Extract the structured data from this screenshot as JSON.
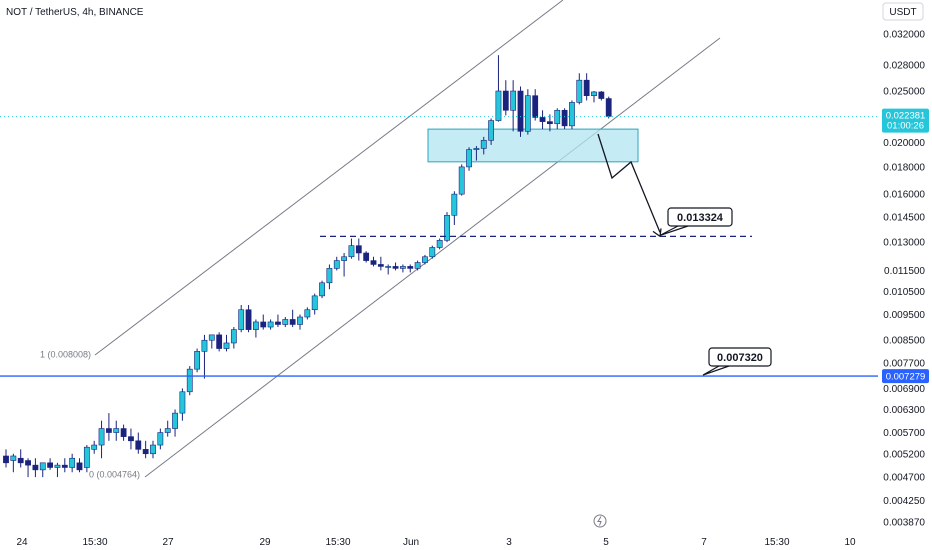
{
  "chart_data": {
    "type": "candlestick",
    "title": "NOT / TetherUS, 4h, BINANCE",
    "currency": "USDT",
    "y_scale": "log",
    "ylim": [
      0.0037,
      0.0335
    ],
    "y_ticks": [
      "0.032000",
      "0.028000",
      "0.025000",
      "0.020000",
      "0.018000",
      "0.016000",
      "0.014500",
      "0.013000",
      "0.011500",
      "0.010500",
      "0.009500",
      "0.008500",
      "0.007700",
      "0.006900",
      "0.006300",
      "0.005700",
      "0.005200",
      "0.004700",
      "0.004250",
      "0.003870"
    ],
    "x_labels": [
      "24",
      "15:30",
      "27",
      "29",
      "15:30",
      "Jun",
      "3",
      "5",
      "7",
      "15:30",
      "10"
    ],
    "last_price": {
      "value": "0.022381",
      "countdown": "01:00:26"
    },
    "support_line": {
      "value": "0.007279"
    },
    "callouts": [
      {
        "text": "0.013324",
        "value": 0.013324
      },
      {
        "text": "0.007320",
        "value": 0.00732
      }
    ],
    "fib_labels": [
      {
        "text": "1 (0.008008)",
        "value": 0.008008
      },
      {
        "text": "0 (0.004764)",
        "value": 0.004764
      }
    ],
    "colors": {
      "up": "#26c6da",
      "down": "#1a237e",
      "wick": "#1a237e",
      "support": "#2962ff",
      "zone": "#b2e6f0"
    },
    "candles": [
      [
        0.00515,
        0.0053,
        0.0049,
        0.005
      ],
      [
        0.00505,
        0.0052,
        0.0048,
        0.00515
      ],
      [
        0.0051,
        0.0053,
        0.0049,
        0.005
      ],
      [
        0.00505,
        0.0051,
        0.0047,
        0.00495
      ],
      [
        0.00495,
        0.0051,
        0.0047,
        0.00485
      ],
      [
        0.00485,
        0.005,
        0.0047,
        0.005
      ],
      [
        0.005,
        0.0051,
        0.00485,
        0.0049
      ],
      [
        0.0049,
        0.005,
        0.0047,
        0.00495
      ],
      [
        0.00495,
        0.0051,
        0.0048,
        0.0049
      ],
      [
        0.0049,
        0.0052,
        0.0048,
        0.0051
      ],
      [
        0.005,
        0.0051,
        0.0048,
        0.00485
      ],
      [
        0.0049,
        0.0054,
        0.0048,
        0.00535
      ],
      [
        0.0053,
        0.0055,
        0.0052,
        0.0054
      ],
      [
        0.0054,
        0.006,
        0.0051,
        0.0058
      ],
      [
        0.0058,
        0.0062,
        0.0055,
        0.0057
      ],
      [
        0.0057,
        0.006,
        0.0055,
        0.0058
      ],
      [
        0.0058,
        0.0059,
        0.0055,
        0.0056
      ],
      [
        0.0056,
        0.0058,
        0.0053,
        0.0055
      ],
      [
        0.0055,
        0.0057,
        0.0052,
        0.0053
      ],
      [
        0.0053,
        0.0055,
        0.0051,
        0.0052
      ],
      [
        0.0052,
        0.0055,
        0.0051,
        0.0054
      ],
      [
        0.0054,
        0.0058,
        0.0053,
        0.0057
      ],
      [
        0.0057,
        0.006,
        0.0056,
        0.0058
      ],
      [
        0.0058,
        0.0063,
        0.0056,
        0.0062
      ],
      [
        0.0062,
        0.0069,
        0.006,
        0.0068
      ],
      [
        0.0068,
        0.0076,
        0.0067,
        0.0075
      ],
      [
        0.0075,
        0.0082,
        0.0074,
        0.0081
      ],
      [
        0.0081,
        0.0087,
        0.0072,
        0.0085
      ],
      [
        0.0085,
        0.0087,
        0.0082,
        0.0087
      ],
      [
        0.0087,
        0.0088,
        0.0081,
        0.0082
      ],
      [
        0.0082,
        0.0087,
        0.0081,
        0.0084
      ],
      [
        0.0084,
        0.009,
        0.0082,
        0.0089
      ],
      [
        0.0089,
        0.0099,
        0.0088,
        0.0097
      ],
      [
        0.0097,
        0.0099,
        0.0088,
        0.0089
      ],
      [
        0.0089,
        0.0093,
        0.0086,
        0.0092
      ],
      [
        0.0092,
        0.0095,
        0.0089,
        0.009
      ],
      [
        0.009,
        0.0093,
        0.0089,
        0.0092
      ],
      [
        0.0092,
        0.0095,
        0.009,
        0.0091
      ],
      [
        0.0091,
        0.0094,
        0.009,
        0.0093
      ],
      [
        0.0093,
        0.0097,
        0.009,
        0.0091
      ],
      [
        0.0091,
        0.0095,
        0.0089,
        0.0094
      ],
      [
        0.0094,
        0.0098,
        0.0093,
        0.0097
      ],
      [
        0.0097,
        0.0104,
        0.0095,
        0.0103
      ],
      [
        0.0103,
        0.011,
        0.0102,
        0.0109
      ],
      [
        0.0109,
        0.0118,
        0.0106,
        0.0116
      ],
      [
        0.0116,
        0.0122,
        0.0115,
        0.012
      ],
      [
        0.012,
        0.0124,
        0.0112,
        0.0122
      ],
      [
        0.0122,
        0.0132,
        0.0121,
        0.0128
      ],
      [
        0.0128,
        0.0132,
        0.012,
        0.0124
      ],
      [
        0.0124,
        0.0125,
        0.0119,
        0.012
      ],
      [
        0.012,
        0.0122,
        0.0117,
        0.0118
      ],
      [
        0.0118,
        0.0122,
        0.0115,
        0.0117
      ],
      [
        0.0117,
        0.0118,
        0.0113,
        0.0117
      ],
      [
        0.0117,
        0.0119,
        0.0115,
        0.0116
      ],
      [
        0.0116,
        0.0118,
        0.0114,
        0.0117
      ],
      [
        0.0117,
        0.0118,
        0.0114,
        0.0116
      ],
      [
        0.0116,
        0.012,
        0.0115,
        0.0119
      ],
      [
        0.0119,
        0.0123,
        0.0118,
        0.0122
      ],
      [
        0.0122,
        0.0128,
        0.0121,
        0.0127
      ],
      [
        0.0127,
        0.0132,
        0.0126,
        0.0131
      ],
      [
        0.0131,
        0.0148,
        0.013,
        0.0146
      ],
      [
        0.0146,
        0.0162,
        0.014,
        0.016
      ],
      [
        0.016,
        0.0182,
        0.0159,
        0.018
      ],
      [
        0.018,
        0.0196,
        0.0177,
        0.0194
      ],
      [
        0.0194,
        0.0197,
        0.0185,
        0.0195
      ],
      [
        0.0195,
        0.0205,
        0.019,
        0.0202
      ],
      [
        0.0202,
        0.0222,
        0.0198,
        0.022
      ],
      [
        0.022,
        0.0292,
        0.0219,
        0.025
      ],
      [
        0.025,
        0.0262,
        0.0225,
        0.023
      ],
      [
        0.023,
        0.0262,
        0.021,
        0.025
      ],
      [
        0.025,
        0.0255,
        0.0205,
        0.021
      ],
      [
        0.021,
        0.0252,
        0.0207,
        0.0245
      ],
      [
        0.0245,
        0.0252,
        0.022,
        0.0223
      ],
      [
        0.0223,
        0.023,
        0.0212,
        0.0219
      ],
      [
        0.0219,
        0.0226,
        0.021,
        0.0217
      ],
      [
        0.0217,
        0.0232,
        0.0212,
        0.023
      ],
      [
        0.023,
        0.0232,
        0.0212,
        0.0215
      ],
      [
        0.0215,
        0.024,
        0.0212,
        0.0238
      ],
      [
        0.0238,
        0.027,
        0.0236,
        0.0262
      ],
      [
        0.0262,
        0.027,
        0.024,
        0.0245
      ],
      [
        0.0245,
        0.025,
        0.0238,
        0.0249
      ],
      [
        0.0249,
        0.025,
        0.024,
        0.0242
      ],
      [
        0.0242,
        0.0244,
        0.0222,
        0.0224
      ]
    ]
  }
}
